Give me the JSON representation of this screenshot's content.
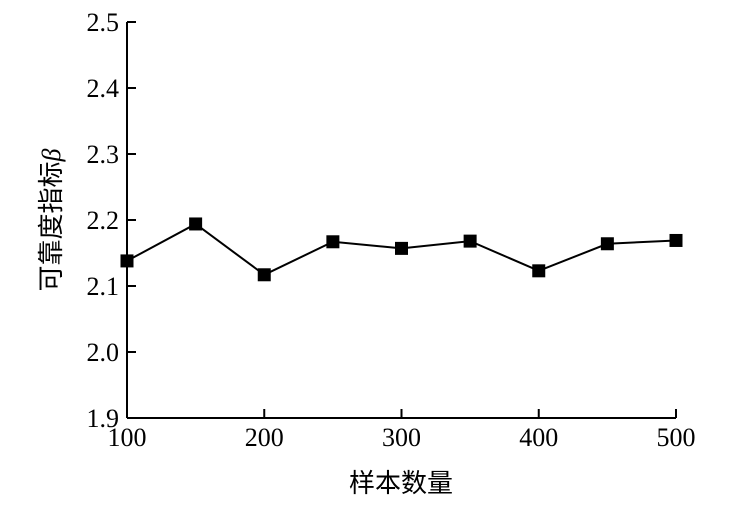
{
  "chart_data": {
    "type": "line",
    "title": "",
    "xlabel": "样本数量",
    "ylabel": "可靠度指标",
    "ylabel_symbol": "β",
    "xlim": [
      100,
      500
    ],
    "ylim": [
      1.9,
      2.5
    ],
    "xticks": [
      "100",
      "200",
      "300",
      "400",
      "500"
    ],
    "xtick_values": [
      100,
      200,
      300,
      400,
      500
    ],
    "yticks": [
      "1.9",
      "2.0",
      "2.1",
      "2.2",
      "2.3",
      "2.4",
      "2.5"
    ],
    "ytick_values": [
      1.9,
      2.0,
      2.1,
      2.2,
      2.3,
      2.4,
      2.5
    ],
    "grid": false,
    "marker": "square",
    "color": "#000000",
    "series": [
      {
        "x": [
          100,
          150,
          200,
          250,
          300,
          350,
          400,
          450,
          500
        ],
        "y": [
          2.138,
          2.194,
          2.117,
          2.167,
          2.157,
          2.168,
          2.123,
          2.164,
          2.169
        ]
      }
    ]
  }
}
